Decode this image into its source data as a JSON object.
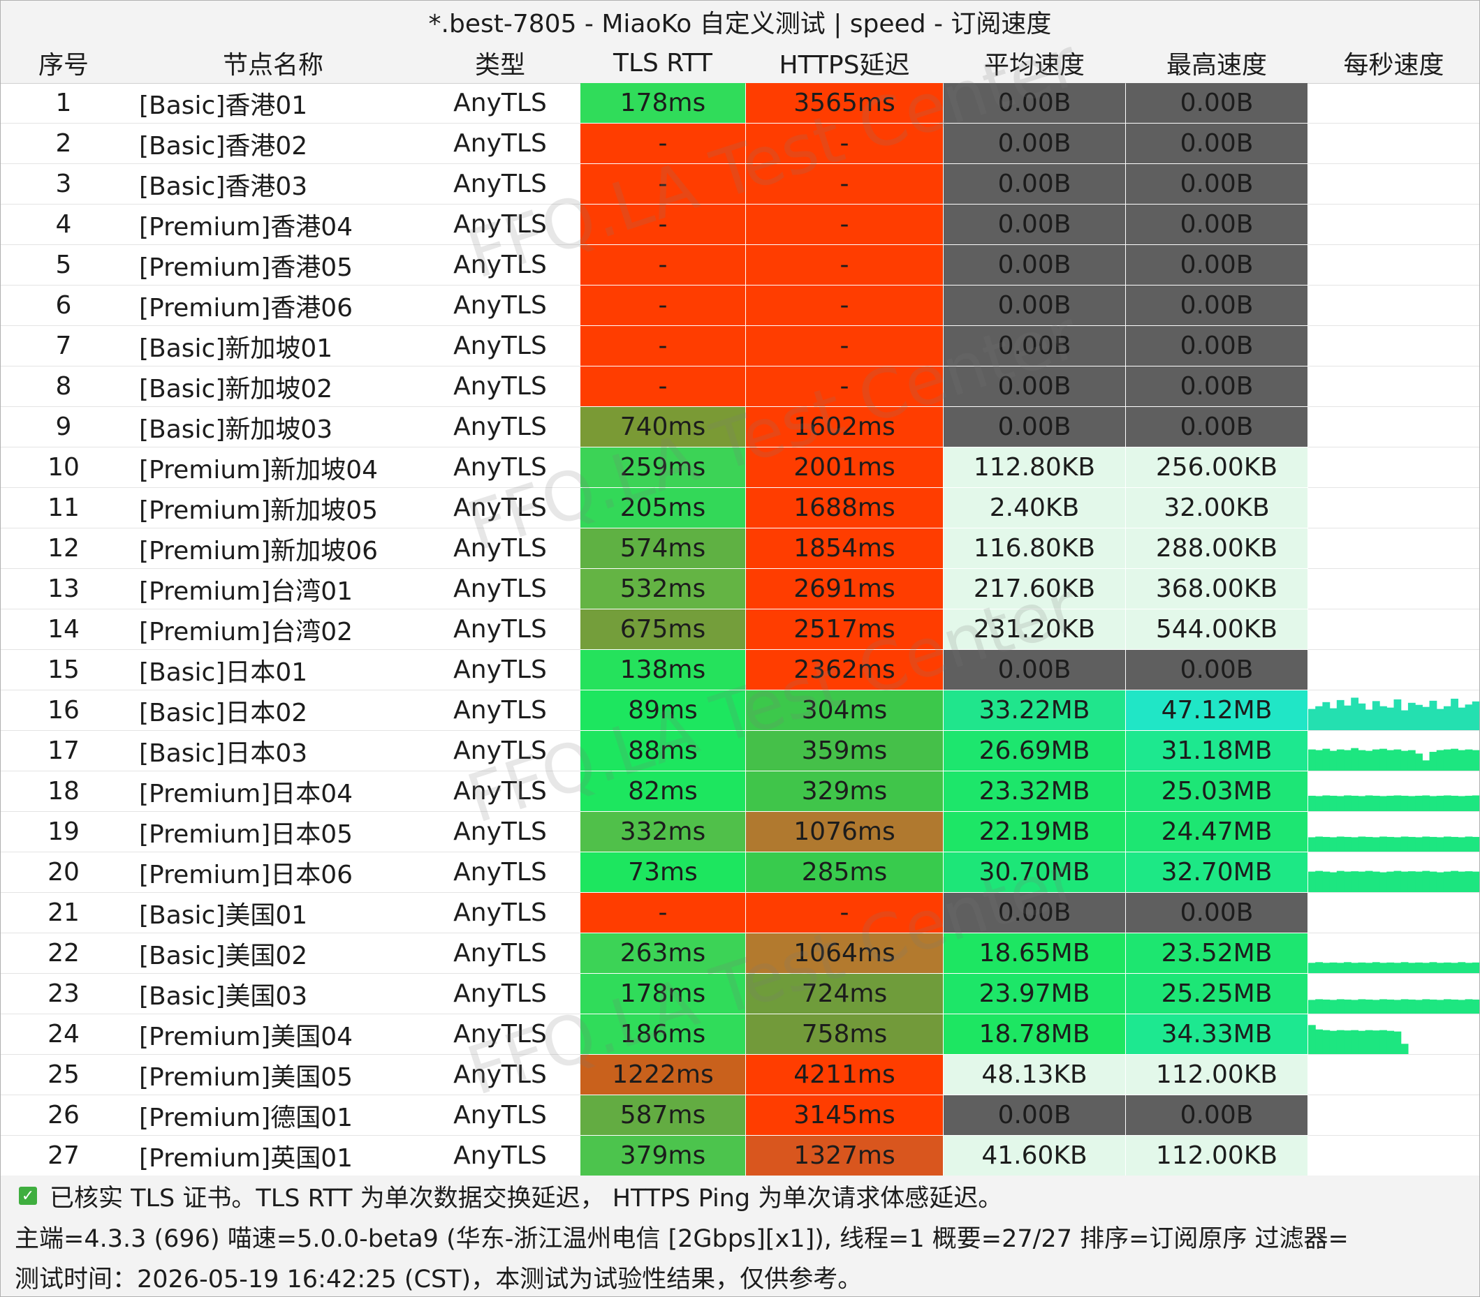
{
  "title": "*.best-7805 - MiaoKo 自定义测试 | speed - 订阅速度",
  "watermark": "FFQ.LA Test Center",
  "columns": [
    "序号",
    "节点名称",
    "类型",
    "TLS RTT",
    "HTTPS延迟",
    "平均速度",
    "最高速度",
    "每秒速度"
  ],
  "colors": {
    "fail_red": "#ff3d00",
    "zero_speed_gray": "#5f5f5f",
    "low_speed_mint": "#e3f8ea",
    "good_green": "#1de65f",
    "mid_green": "#3cc84b",
    "olive": "#6fa43a",
    "brown": "#b0792f",
    "dark_orange": "#d9561e",
    "teal": "#20e6c6",
    "spring": "#1df09a"
  },
  "rows": [
    {
      "idx": "1",
      "name": "[Basic]香港01",
      "type": "AnyTLS",
      "tls": "178ms",
      "https": "3565ms",
      "avg": "0.00B",
      "max": "0.00B",
      "tls_color": "#30dc5a",
      "https_color": "#ff3d00",
      "avg_color": "#5f5f5f",
      "max_color": "#5f5f5f",
      "spark": []
    },
    {
      "idx": "2",
      "name": "[Basic]香港02",
      "type": "AnyTLS",
      "tls": "-",
      "https": "-",
      "avg": "0.00B",
      "max": "0.00B",
      "tls_color": "#ff3d00",
      "https_color": "#ff3d00",
      "avg_color": "#5f5f5f",
      "max_color": "#5f5f5f",
      "spark": []
    },
    {
      "idx": "3",
      "name": "[Basic]香港03",
      "type": "AnyTLS",
      "tls": "-",
      "https": "-",
      "avg": "0.00B",
      "max": "0.00B",
      "tls_color": "#ff3d00",
      "https_color": "#ff3d00",
      "avg_color": "#5f5f5f",
      "max_color": "#5f5f5f",
      "spark": []
    },
    {
      "idx": "4",
      "name": "[Premium]香港04",
      "type": "AnyTLS",
      "tls": "-",
      "https": "-",
      "avg": "0.00B",
      "max": "0.00B",
      "tls_color": "#ff3d00",
      "https_color": "#ff3d00",
      "avg_color": "#5f5f5f",
      "max_color": "#5f5f5f",
      "spark": []
    },
    {
      "idx": "5",
      "name": "[Premium]香港05",
      "type": "AnyTLS",
      "tls": "-",
      "https": "-",
      "avg": "0.00B",
      "max": "0.00B",
      "tls_color": "#ff3d00",
      "https_color": "#ff3d00",
      "avg_color": "#5f5f5f",
      "max_color": "#5f5f5f",
      "spark": []
    },
    {
      "idx": "6",
      "name": "[Premium]香港06",
      "type": "AnyTLS",
      "tls": "-",
      "https": "-",
      "avg": "0.00B",
      "max": "0.00B",
      "tls_color": "#ff3d00",
      "https_color": "#ff3d00",
      "avg_color": "#5f5f5f",
      "max_color": "#5f5f5f",
      "spark": []
    },
    {
      "idx": "7",
      "name": "[Basic]新加坡01",
      "type": "AnyTLS",
      "tls": "-",
      "https": "-",
      "avg": "0.00B",
      "max": "0.00B",
      "tls_color": "#ff3d00",
      "https_color": "#ff3d00",
      "avg_color": "#5f5f5f",
      "max_color": "#5f5f5f",
      "spark": []
    },
    {
      "idx": "8",
      "name": "[Basic]新加坡02",
      "type": "AnyTLS",
      "tls": "-",
      "https": "-",
      "avg": "0.00B",
      "max": "0.00B",
      "tls_color": "#ff3d00",
      "https_color": "#ff3d00",
      "avg_color": "#5f5f5f",
      "max_color": "#5f5f5f",
      "spark": []
    },
    {
      "idx": "9",
      "name": "[Basic]新加坡03",
      "type": "AnyTLS",
      "tls": "740ms",
      "https": "1602ms",
      "avg": "0.00B",
      "max": "0.00B",
      "tls_color": "#7a9a35",
      "https_color": "#ff3d00",
      "avg_color": "#5f5f5f",
      "max_color": "#5f5f5f",
      "spark": []
    },
    {
      "idx": "10",
      "name": "[Premium]新加坡04",
      "type": "AnyTLS",
      "tls": "259ms",
      "https": "2001ms",
      "avg": "112.80KB",
      "max": "256.00KB",
      "tls_color": "#3cd356",
      "https_color": "#ff3d00",
      "avg_color": "#e3f8ea",
      "max_color": "#e3f8ea",
      "spark": []
    },
    {
      "idx": "11",
      "name": "[Premium]新加坡05",
      "type": "AnyTLS",
      "tls": "205ms",
      "https": "1688ms",
      "avg": "2.40KB",
      "max": "32.00KB",
      "tls_color": "#33d858",
      "https_color": "#ff3d00",
      "avg_color": "#e3f8ea",
      "max_color": "#e3f8ea",
      "spark": []
    },
    {
      "idx": "12",
      "name": "[Premium]新加坡06",
      "type": "AnyTLS",
      "tls": "574ms",
      "https": "1854ms",
      "avg": "116.80KB",
      "max": "288.00KB",
      "tls_color": "#5fb143",
      "https_color": "#ff3d00",
      "avg_color": "#e3f8ea",
      "max_color": "#e3f8ea",
      "spark": []
    },
    {
      "idx": "13",
      "name": "[Premium]台湾01",
      "type": "AnyTLS",
      "tls": "532ms",
      "https": "2691ms",
      "avg": "217.60KB",
      "max": "368.00KB",
      "tls_color": "#64b444",
      "https_color": "#ff3d00",
      "avg_color": "#e3f8ea",
      "max_color": "#e3f8ea",
      "spark": []
    },
    {
      "idx": "14",
      "name": "[Premium]台湾02",
      "type": "AnyTLS",
      "tls": "675ms",
      "https": "2517ms",
      "avg": "231.20KB",
      "max": "544.00KB",
      "tls_color": "#749e3b",
      "https_color": "#ff3d00",
      "avg_color": "#e3f8ea",
      "max_color": "#e3f8ea",
      "spark": []
    },
    {
      "idx": "15",
      "name": "[Basic]日本01",
      "type": "AnyTLS",
      "tls": "138ms",
      "https": "2362ms",
      "avg": "0.00B",
      "max": "0.00B",
      "tls_color": "#25e25c",
      "https_color": "#ff3d00",
      "avg_color": "#5f5f5f",
      "max_color": "#5f5f5f",
      "spark": []
    },
    {
      "idx": "16",
      "name": "[Basic]日本02",
      "type": "AnyTLS",
      "tls": "89ms",
      "https": "304ms",
      "avg": "33.22MB",
      "max": "47.12MB",
      "tls_color": "#1de65f",
      "https_color": "#3cc84b",
      "avg_color": "#20e58c",
      "max_color": "#20e6c6",
      "spark": [
        0.62,
        0.7,
        0.82,
        0.64,
        0.88,
        0.72,
        0.95,
        0.78,
        0.6,
        0.85,
        0.7,
        0.66,
        0.9,
        0.58,
        0.8,
        0.74,
        0.68,
        0.86,
        0.62,
        0.7,
        0.92,
        0.66,
        0.75,
        0.84
      ]
    },
    {
      "idx": "17",
      "name": "[Basic]日本03",
      "type": "AnyTLS",
      "tls": "88ms",
      "https": "359ms",
      "avg": "26.69MB",
      "max": "31.18MB",
      "tls_color": "#1de65f",
      "https_color": "#45c049",
      "avg_color": "#1de66e",
      "max_color": "#1de88f",
      "spark": [
        0.62,
        0.6,
        0.64,
        0.58,
        0.62,
        0.6,
        0.66,
        0.6,
        0.58,
        0.62,
        0.64,
        0.6,
        0.62,
        0.58,
        0.6,
        0.5,
        0.3,
        0.55,
        0.6,
        0.62,
        0.64,
        0.6,
        0.62,
        0.6
      ]
    },
    {
      "idx": "18",
      "name": "[Premium]日本04",
      "type": "AnyTLS",
      "tls": "82ms",
      "https": "329ms",
      "avg": "23.32MB",
      "max": "25.03MB",
      "tls_color": "#1de65f",
      "https_color": "#40c54a",
      "avg_color": "#1de66a",
      "max_color": "#1de676",
      "spark": [
        0.45,
        0.44,
        0.46,
        0.45,
        0.44,
        0.46,
        0.45,
        0.44,
        0.46,
        0.45,
        0.44,
        0.45,
        0.46,
        0.45,
        0.44,
        0.45,
        0.46,
        0.44,
        0.45,
        0.46,
        0.45,
        0.44,
        0.45,
        0.46
      ]
    },
    {
      "idx": "19",
      "name": "[Premium]日本05",
      "type": "AnyTLS",
      "tls": "332ms",
      "https": "1076ms",
      "avg": "22.19MB",
      "max": "24.47MB",
      "tls_color": "#50c04a",
      "https_color": "#b0792f",
      "avg_color": "#1de666",
      "max_color": "#1de672",
      "spark": [
        0.42,
        0.44,
        0.43,
        0.42,
        0.44,
        0.43,
        0.42,
        0.44,
        0.43,
        0.42,
        0.44,
        0.43,
        0.42,
        0.44,
        0.43,
        0.42,
        0.44,
        0.43,
        0.42,
        0.44,
        0.43,
        0.42,
        0.44,
        0.43
      ]
    },
    {
      "idx": "20",
      "name": "[Premium]日本06",
      "type": "AnyTLS",
      "tls": "73ms",
      "https": "285ms",
      "avg": "30.70MB",
      "max": "32.70MB",
      "tls_color": "#1de65f",
      "https_color": "#38cb4d",
      "avg_color": "#1de678",
      "max_color": "#1de885",
      "spark": [
        0.6,
        0.62,
        0.6,
        0.58,
        0.62,
        0.6,
        0.61,
        0.6,
        0.62,
        0.6,
        0.58,
        0.6,
        0.62,
        0.6,
        0.61,
        0.6,
        0.62,
        0.6,
        0.58,
        0.6,
        0.62,
        0.6,
        0.61,
        0.6
      ]
    },
    {
      "idx": "21",
      "name": "[Basic]美国01",
      "type": "AnyTLS",
      "tls": "-",
      "https": "-",
      "avg": "0.00B",
      "max": "0.00B",
      "tls_color": "#ff3d00",
      "https_color": "#ff3d00",
      "avg_color": "#5f5f5f",
      "max_color": "#5f5f5f",
      "spark": []
    },
    {
      "idx": "22",
      "name": "[Basic]美国02",
      "type": "AnyTLS",
      "tls": "263ms",
      "https": "1064ms",
      "avg": "18.65MB",
      "max": "23.52MB",
      "tls_color": "#3cd356",
      "https_color": "#b37a2e",
      "avg_color": "#1de662",
      "max_color": "#1de670",
      "spark": [
        0.3,
        0.32,
        0.3,
        0.31,
        0.3,
        0.32,
        0.3,
        0.31,
        0.3,
        0.32,
        0.3,
        0.31,
        0.3,
        0.32,
        0.3,
        0.31,
        0.3,
        0.32,
        0.3,
        0.31,
        0.3,
        0.32,
        0.3,
        0.31
      ]
    },
    {
      "idx": "23",
      "name": "[Basic]美国03",
      "type": "AnyTLS",
      "tls": "178ms",
      "https": "724ms",
      "avg": "23.97MB",
      "max": "25.25MB",
      "tls_color": "#30dc5a",
      "https_color": "#6f9c3b",
      "avg_color": "#1de668",
      "max_color": "#1de676",
      "spark": [
        0.4,
        0.42,
        0.41,
        0.4,
        0.42,
        0.41,
        0.4,
        0.42,
        0.41,
        0.4,
        0.42,
        0.41,
        0.4,
        0.42,
        0.41,
        0.4,
        0.42,
        0.41,
        0.4,
        0.42,
        0.41,
        0.4,
        0.42,
        0.41
      ]
    },
    {
      "idx": "24",
      "name": "[Premium]美国04",
      "type": "AnyTLS",
      "tls": "186ms",
      "https": "758ms",
      "avg": "18.78MB",
      "max": "34.33MB",
      "tls_color": "#30dc5a",
      "https_color": "#729a3a",
      "avg_color": "#1de662",
      "max_color": "#1de890",
      "spark": [
        0.85,
        0.72,
        0.7,
        0.68,
        0.7,
        0.69,
        0.7,
        0.68,
        0.7,
        0.69,
        0.7,
        0.68,
        0.66,
        0.3
      ]
    },
    {
      "idx": "25",
      "name": "[Premium]美国05",
      "type": "AnyTLS",
      "tls": "1222ms",
      "https": "4211ms",
      "avg": "48.13KB",
      "max": "112.00KB",
      "tls_color": "#c9611c",
      "https_color": "#ff3d00",
      "avg_color": "#e3f8ea",
      "max_color": "#e3f8ea",
      "spark": []
    },
    {
      "idx": "26",
      "name": "[Premium]德国01",
      "type": "AnyTLS",
      "tls": "587ms",
      "https": "3145ms",
      "avg": "0.00B",
      "max": "0.00B",
      "tls_color": "#63ac42",
      "https_color": "#ff3d00",
      "avg_color": "#5f5f5f",
      "max_color": "#5f5f5f",
      "spark": []
    },
    {
      "idx": "27",
      "name": "[Premium]英国01",
      "type": "AnyTLS",
      "tls": "379ms",
      "https": "1327ms",
      "avg": "41.60KB",
      "max": "112.00KB",
      "tls_color": "#4cc44d",
      "https_color": "#d9561e",
      "avg_color": "#e3f8ea",
      "max_color": "#e3f8ea",
      "spark": []
    }
  ],
  "footer": {
    "icon": "checkbox-checked-icon",
    "line1": "已核实 TLS 证书。TLS RTT 为单次数据交换延迟， HTTPS Ping 为单次请求体感延迟。",
    "line2": "主端=4.3.3 (696) 喵速=5.0.0-beta9 (华东-浙江温州电信 [2Gbps][x1]), 线程=1 概要=27/27 排序=订阅原序 过滤器=",
    "line3": "测试时间：2026-05-19 16:42:25 (CST)，本测试为试验性结果，仅供参考。"
  }
}
